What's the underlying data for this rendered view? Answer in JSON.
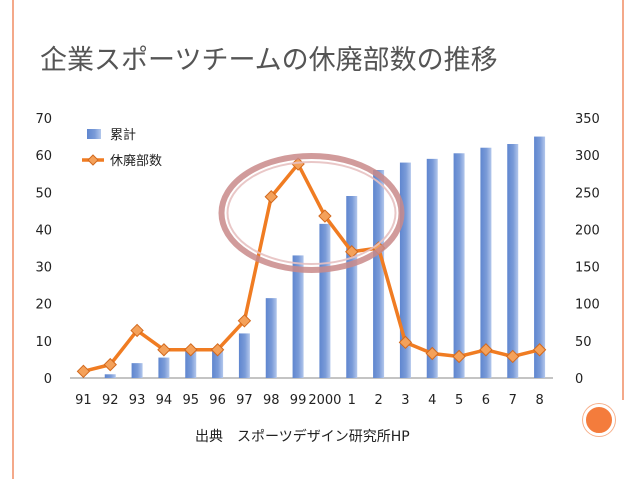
{
  "slide": {
    "title": "企業スポーツチームの休廃部数の推移",
    "source": "出典　スポーツデザイン研究所HP"
  },
  "colors": {
    "bar": "#7a9bd8",
    "line": "#f07c22",
    "marker": "#f4a15a",
    "highlight": "#c98a8a",
    "frame": "#f4a98a",
    "accent_dot": "#f47c3c"
  },
  "chart_data": {
    "type": "bar",
    "categories": [
      "91",
      "92",
      "93",
      "94",
      "95",
      "96",
      "97",
      "98",
      "99",
      "2000",
      "1",
      "2",
      "3",
      "4",
      "5",
      "6",
      "7",
      "8"
    ],
    "xlabel": "",
    "ylabel": "",
    "ylim": [
      0,
      70
    ],
    "y2lim": [
      0,
      350
    ],
    "yticks": [
      "0",
      "10",
      "20",
      "30",
      "40",
      "50",
      "60",
      "70"
    ],
    "y2ticks": [
      "0",
      "50",
      "100",
      "150",
      "200",
      "250",
      "300",
      "350"
    ],
    "legend_position": "top-left",
    "grid": false,
    "series": [
      {
        "name": "累計",
        "type": "bar",
        "axis": "left",
        "values": [
          0,
          1,
          4,
          5.5,
          7.5,
          8,
          12,
          21.5,
          33,
          41.5,
          49,
          56,
          58,
          59,
          60.5,
          62,
          63,
          65
        ]
      },
      {
        "name": "休廃部数",
        "type": "line",
        "axis": "right",
        "values": [
          9,
          18,
          64,
          38,
          38,
          38,
          77,
          244,
          288,
          218,
          170,
          175,
          48,
          33,
          29,
          38,
          29,
          38
        ]
      }
    ],
    "annotations": [
      {
        "type": "ellipse",
        "around": [
          "98",
          "99",
          "2000",
          "1"
        ]
      }
    ]
  }
}
